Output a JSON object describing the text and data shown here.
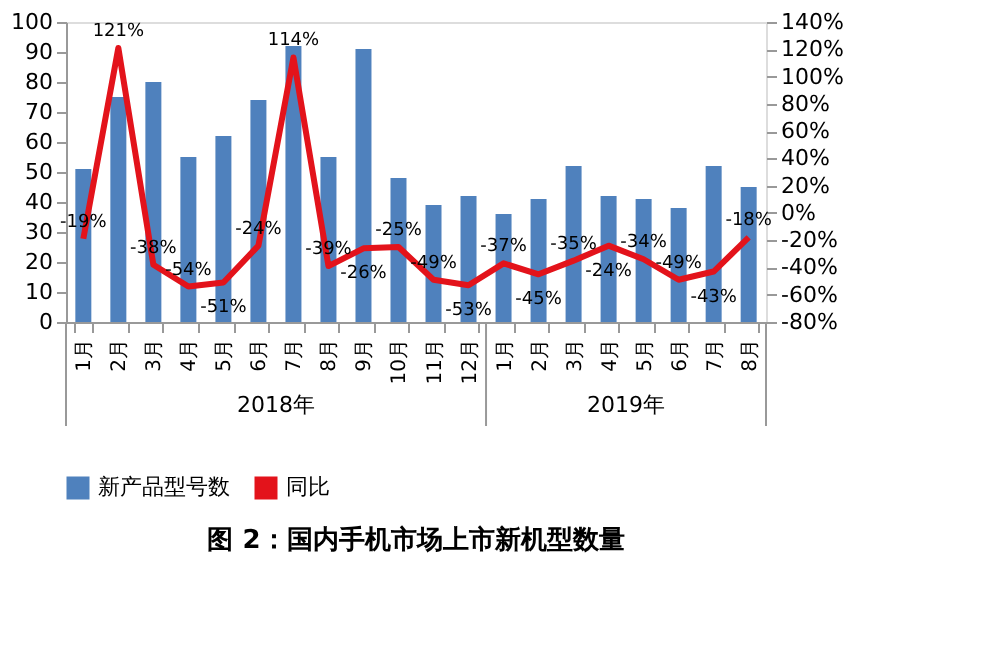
{
  "chart_data": {
    "type": "bar",
    "title": "图 2：国内手机市场上市新机型数量",
    "categories": [
      "1月",
      "2月",
      "3月",
      "4月",
      "5月",
      "6月",
      "7月",
      "8月",
      "9月",
      "10月",
      "11月",
      "12月",
      "1月",
      "2月",
      "3月",
      "4月",
      "5月",
      "6月",
      "7月",
      "8月"
    ],
    "annotations": [
      "2018年",
      "2019年"
    ],
    "series": [
      {
        "name": "新产品型号数",
        "color": "#4f81bd",
        "values": [
          51,
          75,
          80,
          55,
          62,
          74,
          92,
          55,
          91,
          48,
          39,
          42,
          36,
          41,
          52,
          42,
          41,
          38,
          52,
          45
        ]
      },
      {
        "name": "同比",
        "type": "line",
        "axis": "y2",
        "color": "#e3131b",
        "values": [
          -19,
          121,
          -38,
          -54,
          -51,
          -24,
          114,
          -39,
          -26,
          -25,
          -49,
          -53,
          -37,
          -45,
          -35,
          -24,
          -34,
          -49,
          -43,
          -18
        ],
        "value_labels": [
          "-19%",
          "121%",
          "-38%",
          "-54%",
          "-51%",
          "-24%",
          "114%",
          "-39%",
          "-26%",
          "-25%",
          "-49%",
          "-53%",
          "-37%",
          "-45%",
          "-35%",
          "-24%",
          "-34%",
          "-49%",
          "-43%",
          "-18%"
        ]
      }
    ],
    "ylim": [
      0,
      100
    ],
    "yticks": [
      0,
      10,
      20,
      30,
      40,
      50,
      60,
      70,
      80,
      90,
      100
    ],
    "y2lim": [
      -80,
      140
    ],
    "y2ticks": [
      {
        "value": -80,
        "label": "-80%"
      },
      {
        "value": -60,
        "label": "-60%"
      },
      {
        "value": -40,
        "label": "-40%"
      },
      {
        "value": -20,
        "label": "-20%"
      },
      {
        "value": 0,
        "label": "0%"
      },
      {
        "value": 20,
        "label": "20%"
      },
      {
        "value": 40,
        "label": "40%"
      },
      {
        "value": 60,
        "label": "60%"
      },
      {
        "value": 80,
        "label": "80%"
      },
      {
        "value": 100,
        "label": "100%"
      },
      {
        "value": 120,
        "label": "120%"
      },
      {
        "value": 140,
        "label": "140%"
      }
    ],
    "legend": "bottom",
    "grid": false
  }
}
